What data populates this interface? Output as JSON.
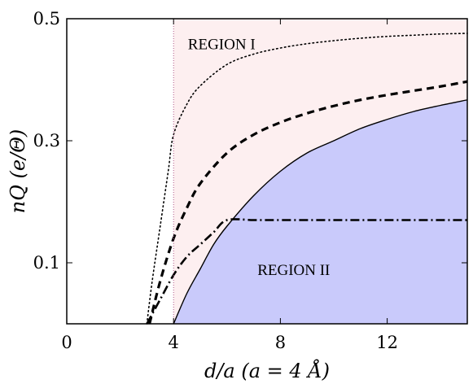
{
  "chart_data": {
    "type": "line",
    "xlabel": "d/a (a = 4 Å)",
    "ylabel": "nQ (e/Θ)",
    "xlim": [
      0,
      15
    ],
    "ylim": [
      0,
      0.5
    ],
    "x_ticks": [
      "0",
      "4",
      "8",
      "12"
    ],
    "y_ticks": [
      "0.1",
      "0.3",
      "0.5"
    ],
    "x_tick_values": [
      0,
      4,
      8,
      12
    ],
    "y_tick_values": [
      0.1,
      0.3,
      0.5
    ],
    "grid": false,
    "annotations": [
      {
        "text": "REGION I",
        "x": 5.8,
        "y": 0.45
      },
      {
        "text": "REGION II",
        "x": 8.5,
        "y": 0.08
      }
    ],
    "vertical_line": {
      "x": 4,
      "style": "dotted"
    },
    "regions": [
      {
        "name": "REGION I",
        "color": "#fdeff0",
        "x_from": 4,
        "bounded_below_by": "solid"
      },
      {
        "name": "REGION II",
        "color": "#c9cafb",
        "bounded_above_by": "solid"
      }
    ],
    "series": [
      {
        "style": "dotted",
        "x": [
          3.0,
          3.2,
          3.5,
          3.8,
          4.0,
          4.5,
          5.0,
          6.0,
          7.0,
          8.0,
          9.0,
          10.0,
          11.0,
          12.0,
          13.0,
          14.0,
          15.0
        ],
        "y": [
          0.0,
          0.07,
          0.16,
          0.25,
          0.31,
          0.36,
          0.39,
          0.425,
          0.442,
          0.452,
          0.459,
          0.464,
          0.468,
          0.471,
          0.473,
          0.475,
          0.476
        ]
      },
      {
        "style": "dashed",
        "x": [
          3.1,
          3.5,
          4.0,
          4.5,
          5.0,
          6.0,
          7.0,
          8.0,
          9.0,
          10.0,
          11.0,
          12.0,
          13.0,
          14.0,
          15.0
        ],
        "y": [
          0.0,
          0.07,
          0.14,
          0.19,
          0.23,
          0.28,
          0.31,
          0.33,
          0.345,
          0.357,
          0.367,
          0.375,
          0.382,
          0.389,
          0.397
        ]
      },
      {
        "style": "dash-dot",
        "x": [
          3.0,
          3.5,
          4.0,
          4.5,
          5.0,
          5.5,
          6.0,
          7.0,
          8.0,
          10.0,
          12.0,
          14.0,
          15.0
        ],
        "y": [
          0.0,
          0.04,
          0.08,
          0.11,
          0.13,
          0.15,
          0.17,
          0.17,
          0.17,
          0.17,
          0.17,
          0.17,
          0.17
        ]
      },
      {
        "style": "solid",
        "x": [
          4.0,
          4.5,
          5.0,
          5.5,
          6.0,
          7.0,
          8.0,
          9.0,
          10.0,
          11.0,
          12.0,
          13.0,
          14.0,
          15.0
        ],
        "y": [
          0.0,
          0.05,
          0.09,
          0.13,
          0.16,
          0.21,
          0.25,
          0.28,
          0.3,
          0.32,
          0.335,
          0.348,
          0.358,
          0.367
        ]
      }
    ]
  }
}
